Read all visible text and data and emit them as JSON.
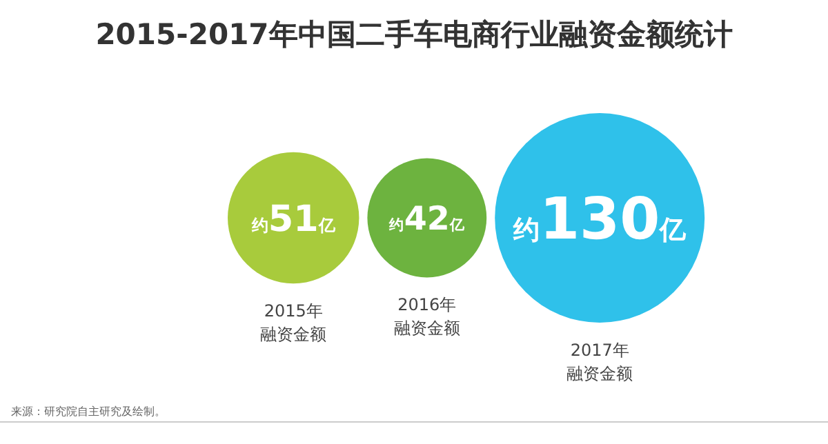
{
  "chart_data": {
    "type": "other",
    "title": "2015-2017年中国二手车电商行业融资金额统计",
    "categories": [
      "2015年融资金额",
      "2016年融资金额",
      "2017年融资金额"
    ],
    "values": [
      51,
      42,
      130
    ],
    "value_labels": [
      "约51亿",
      "约42亿",
      "约130亿"
    ],
    "colors": [
      "#a8cb3c",
      "#6db33f",
      "#2fc1ea"
    ],
    "annotations": [
      "来源：研究院自主研究及绘制。"
    ]
  }
}
